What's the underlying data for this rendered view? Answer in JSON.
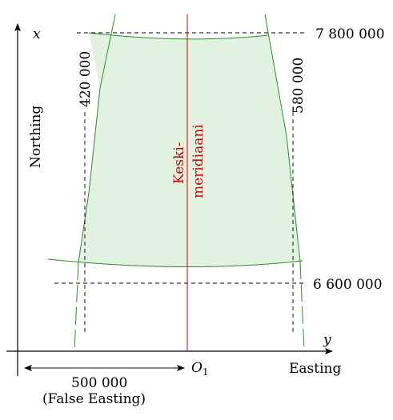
{
  "labels": {
    "axis_x": "x",
    "axis_y": "y",
    "northing": "Northing",
    "easting": "Easting",
    "origin": "O",
    "origin_sub": "1",
    "north_top": "7 800 000",
    "north_bottom": "6 600 000",
    "east_left": "420 000",
    "east_right": "580 000",
    "meridian_line1": "Keski-",
    "meridian_line2": "meridiaani",
    "false_easting_value": "500 000",
    "false_easting_label": "(False Easting)"
  },
  "colors": {
    "zone_fill": "#e2f2e0",
    "zone_edge": "#2e8b2e",
    "meridian": "#d40000",
    "axes": "#000000",
    "dashed": "#000000"
  }
}
